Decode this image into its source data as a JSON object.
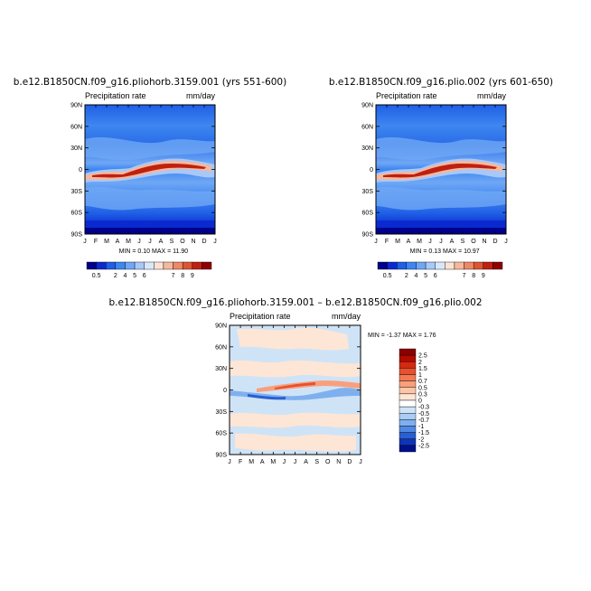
{
  "chart_data": [
    {
      "type": "heatmap",
      "title": "b.e12.B1850CN.f09_g16.pliohorb.3159.001 (yrs 551-600)",
      "subtitle_left": "Precipitation rate",
      "subtitle_right": "mm/day",
      "min_label": "MIN =   0.10",
      "max_label": "MAX =   11.90",
      "x_ticks": [
        "J",
        "F",
        "M",
        "A",
        "M",
        "J",
        "J",
        "A",
        "S",
        "O",
        "N",
        "D",
        "J"
      ],
      "y_ticks": [
        "90N",
        "60N",
        "30N",
        "0",
        "30S",
        "60S",
        "90S"
      ],
      "colorbar": {
        "orientation": "horizontal",
        "labels": [
          "0.5",
          "2",
          "4",
          "5",
          "6",
          "7",
          "8",
          "9"
        ],
        "colors": [
          "#00008c",
          "#0a2ad0",
          "#1f5fe6",
          "#3e86f0",
          "#6fa7f5",
          "#a8c8f8",
          "#d8e8fb",
          "#fbe2d4",
          "#f6b89c",
          "#ee8866",
          "#dd5533",
          "#c02010",
          "#900000"
        ]
      }
    },
    {
      "type": "heatmap",
      "title": "b.e12.B1850CN.f09_g16.plio.002 (yrs 601-650)",
      "subtitle_left": "Precipitation rate",
      "subtitle_right": "mm/day",
      "min_label": "MIN =   0.13",
      "max_label": "MAX =   10.97",
      "x_ticks": [
        "J",
        "F",
        "M",
        "A",
        "M",
        "J",
        "J",
        "A",
        "S",
        "O",
        "N",
        "D",
        "J"
      ],
      "y_ticks": [
        "90N",
        "60N",
        "30N",
        "0",
        "30S",
        "60S",
        "90S"
      ],
      "colorbar": {
        "orientation": "horizontal",
        "labels": [
          "0.5",
          "2",
          "4",
          "5",
          "6",
          "7",
          "8",
          "9"
        ],
        "colors": [
          "#00008c",
          "#0a2ad0",
          "#1f5fe6",
          "#3e86f0",
          "#6fa7f5",
          "#a8c8f8",
          "#d8e8fb",
          "#fbe2d4",
          "#f6b89c",
          "#ee8866",
          "#dd5533",
          "#c02010",
          "#900000"
        ]
      }
    },
    {
      "type": "heatmap",
      "title": "b.e12.B1850CN.f09_g16.pliohorb.3159.001 – b.e12.B1850CN.f09_g16.plio.002",
      "subtitle_left": "Precipitation rate",
      "subtitle_right": "mm/day",
      "minmax_label": "MIN =  -1.37  MAX =    1.76",
      "x_ticks": [
        "J",
        "F",
        "M",
        "A",
        "M",
        "J",
        "J",
        "A",
        "S",
        "O",
        "N",
        "D",
        "J"
      ],
      "y_ticks": [
        "90N",
        "60N",
        "30N",
        "0",
        "30S",
        "60S",
        "90S"
      ],
      "colorbar": {
        "orientation": "vertical",
        "labels": [
          "2.5",
          "2",
          "1.5",
          "1",
          "0.7",
          "0.5",
          "0.3",
          "0",
          "-0.3",
          "-0.5",
          "-0.7",
          "-1",
          "-1.5",
          "-2",
          "-2.5"
        ],
        "colors": [
          "#8b0000",
          "#b30a00",
          "#d42a10",
          "#e8502e",
          "#f27a52",
          "#f8a07c",
          "#fbc6a8",
          "#fde6d6",
          "#ffffff",
          "#cfe3f7",
          "#a9cdf4",
          "#7fb0ee",
          "#4f89e3",
          "#2a5fd2",
          "#0e34b8",
          "#00108a"
        ]
      }
    }
  ]
}
